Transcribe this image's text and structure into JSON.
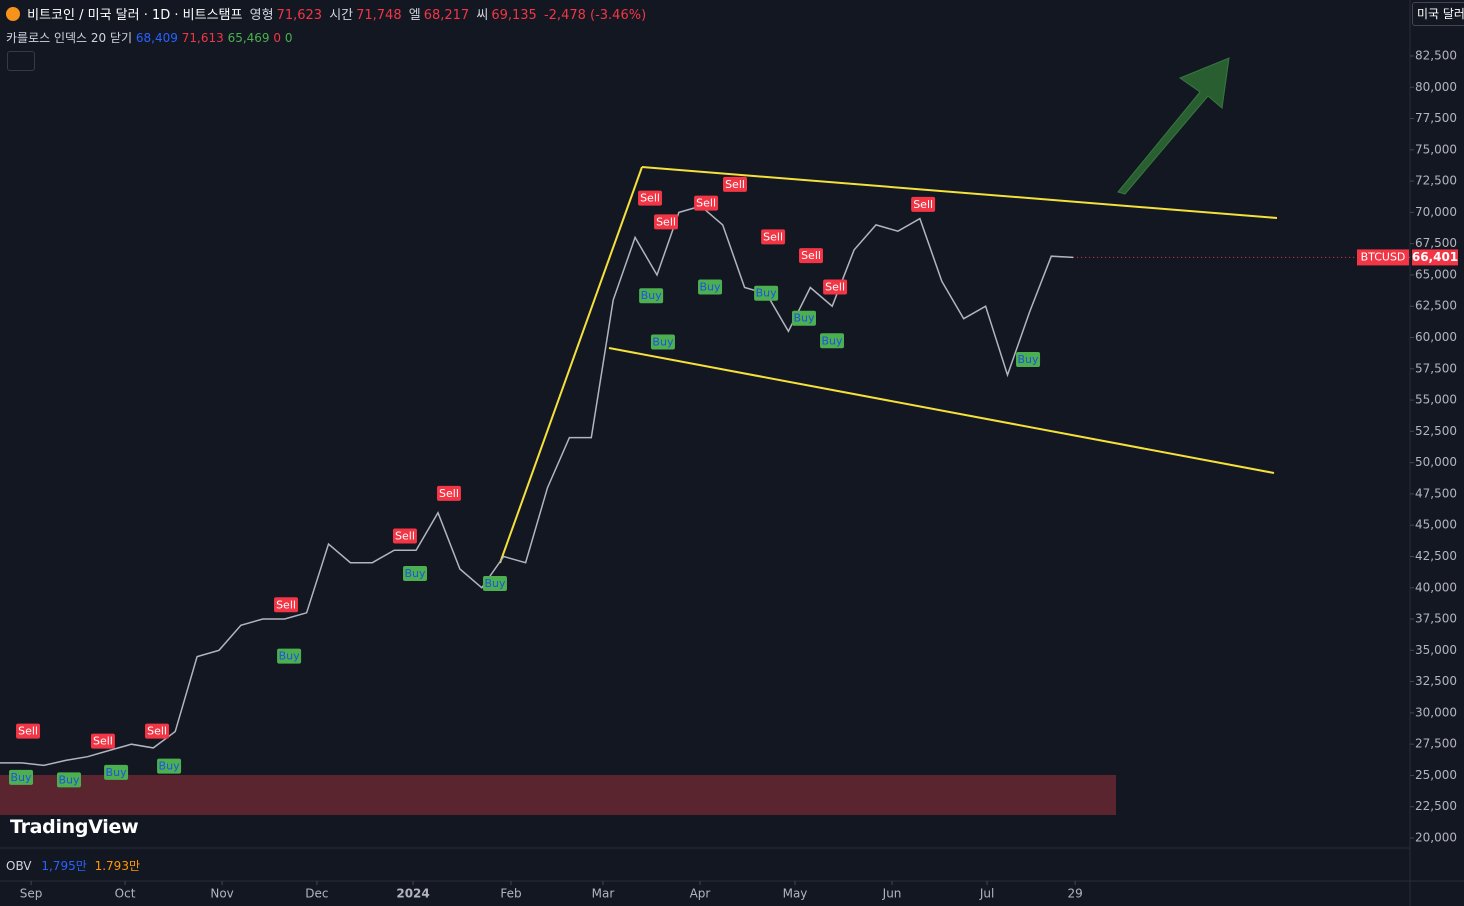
{
  "header": {
    "symbol": "비트코인 / 미국 달러 · 1D · 비트스탬프",
    "ohlc": [
      [
        "영형",
        "71,623"
      ],
      [
        "시간",
        "71,748"
      ],
      [
        "엘",
        "68,217"
      ],
      [
        "씨",
        "69,135"
      ]
    ],
    "change": "-2,478 (-3.46%)",
    "indicator": "카를로스 인덱스 20 닫기",
    "indicator_values": [
      "68,409",
      "71,613",
      "65,469",
      "0",
      "0"
    ],
    "obv": "OBV",
    "obv_values": [
      "1,795만",
      "1.793만"
    ],
    "currency": "미국 달러",
    "logo": "TradingView",
    "symbol_tag": "BTCUSD"
  },
  "chart_data": {
    "type": "line",
    "color": "#b2b5be",
    "categories": [
      null,
      null,
      null,
      null,
      null,
      null,
      null,
      null,
      null,
      null,
      null,
      null,
      null,
      null,
      null,
      null,
      null,
      null,
      null,
      null,
      null,
      null,
      null,
      null,
      null,
      null,
      null,
      null,
      null,
      null,
      null,
      null,
      null,
      null,
      null,
      null,
      null,
      null,
      null,
      null,
      null,
      null,
      null,
      null,
      null,
      null,
      null,
      null,
      null,
      null
    ],
    "values": [
      26000,
      26000,
      25800,
      26200,
      26500,
      27000,
      27500,
      27200,
      28500,
      34500,
      35000,
      37000,
      37500,
      37500,
      38000,
      43500,
      42000,
      42000,
      43000,
      43000,
      46000,
      41500,
      40000,
      42500,
      42000,
      48000,
      52000,
      52000,
      63000,
      68000,
      65000,
      70000,
      70500,
      69000,
      64000,
      63500,
      60500,
      64000,
      62500,
      67000,
      69000,
      68500,
      69500,
      64500,
      61500,
      62500,
      57000,
      62000,
      66500,
      66400
    ],
    "xlim": [
      0,
      64.38
    ],
    "xticks": [
      {
        "value": 1.42,
        "label": "Sep"
      },
      {
        "value": 5.71,
        "label": "Oct"
      },
      {
        "value": 10.14,
        "label": "Nov"
      },
      {
        "value": 14.47,
        "label": "Dec"
      },
      {
        "value": 18.86,
        "label": "2024"
      },
      {
        "value": 23.33,
        "label": "Feb"
      },
      {
        "value": 27.53,
        "label": "Mar"
      },
      {
        "value": 31.96,
        "label": "Apr"
      },
      {
        "value": 36.3,
        "label": "May"
      },
      {
        "value": 40.73,
        "label": "Jun"
      },
      {
        "value": 45.07,
        "label": "Jul"
      },
      {
        "value": 49.09,
        "label": "29"
      }
    ],
    "ylim": [
      19200,
      86975
    ],
    "yticks": [
      {
        "value": 20000,
        "label": "20,000"
      },
      {
        "value": 22500,
        "label": "22,500"
      },
      {
        "value": 25000,
        "label": "25,000"
      },
      {
        "value": 27500,
        "label": "27,500"
      },
      {
        "value": 30000,
        "label": "30,000"
      },
      {
        "value": 32500,
        "label": "32,500"
      },
      {
        "value": 35000,
        "label": "35,000"
      },
      {
        "value": 37500,
        "label": "37,500"
      },
      {
        "value": 40000,
        "label": "40,000"
      },
      {
        "value": 42500,
        "label": "42,500"
      },
      {
        "value": 45000,
        "label": "45,000"
      },
      {
        "value": 47500,
        "label": "47,500"
      },
      {
        "value": 50000,
        "label": "50,000"
      },
      {
        "value": 52500,
        "label": "52,500"
      },
      {
        "value": 55000,
        "label": "55,000"
      },
      {
        "value": 57500,
        "label": "57,500"
      },
      {
        "value": 60000,
        "label": "60,000"
      },
      {
        "value": 62500,
        "label": "62,500"
      },
      {
        "value": 65000,
        "label": "65,000"
      },
      {
        "value": 67500,
        "label": "67,500"
      },
      {
        "value": 70000,
        "label": "70,000"
      },
      {
        "value": 72500,
        "label": "72,500"
      },
      {
        "value": 75000,
        "label": "75,000"
      },
      {
        "value": 77500,
        "label": "77,500"
      },
      {
        "value": 80000,
        "label": "80,000"
      },
      {
        "value": 82500,
        "label": "82,500"
      }
    ],
    "last_price": {
      "value": 66401,
      "label": "66,401"
    },
    "signal_colors": {
      "Sell": "#f23645",
      "Buy": "#4caf50"
    },
    "signals": [
      {
        "label": "Sell",
        "x": 1.28,
        "value": 28500
      },
      {
        "label": "Buy",
        "x": 0.96,
        "value": 24800
      },
      {
        "label": "Buy",
        "x": 3.15,
        "value": 24600
      },
      {
        "label": "Sell",
        "x": 4.7,
        "value": 27700
      },
      {
        "label": "Buy",
        "x": 5.3,
        "value": 25200
      },
      {
        "label": "Sell",
        "x": 7.17,
        "value": 28500
      },
      {
        "label": "Buy",
        "x": 7.72,
        "value": 25700
      },
      {
        "label": "Sell",
        "x": 13.06,
        "value": 38600
      },
      {
        "label": "Buy",
        "x": 13.2,
        "value": 34500
      },
      {
        "label": "Sell",
        "x": 18.49,
        "value": 44100
      },
      {
        "label": "Buy",
        "x": 18.95,
        "value": 41100
      },
      {
        "label": "Sell",
        "x": 20.5,
        "value": 47500
      },
      {
        "label": "Buy",
        "x": 22.6,
        "value": 40300
      },
      {
        "label": "Sell",
        "x": 29.68,
        "value": 71100
      },
      {
        "label": "Buy",
        "x": 29.73,
        "value": 63300
      },
      {
        "label": "Buy",
        "x": 30.27,
        "value": 59600
      },
      {
        "label": "Sell",
        "x": 30.41,
        "value": 69200
      },
      {
        "label": "Sell",
        "x": 32.24,
        "value": 70700
      },
      {
        "label": "Buy",
        "x": 32.42,
        "value": 64000
      },
      {
        "label": "Sell",
        "x": 33.56,
        "value": 72200
      },
      {
        "label": "Sell",
        "x": 35.3,
        "value": 68000
      },
      {
        "label": "Buy",
        "x": 34.98,
        "value": 63500
      },
      {
        "label": "Sell",
        "x": 37.03,
        "value": 66500
      },
      {
        "label": "Buy",
        "x": 36.71,
        "value": 61500
      },
      {
        "label": "Sell",
        "x": 38.13,
        "value": 64000
      },
      {
        "label": "Buy",
        "x": 37.99,
        "value": 59700
      },
      {
        "label": "Sell",
        "x": 42.15,
        "value": 70600
      },
      {
        "label": "Buy",
        "x": 46.94,
        "value": 58200
      }
    ]
  }
}
